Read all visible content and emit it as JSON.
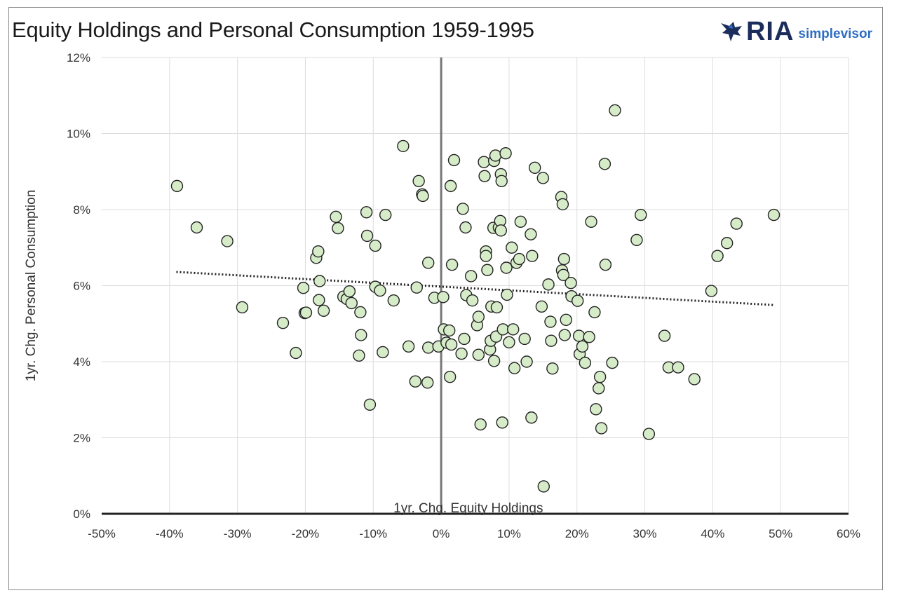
{
  "chart_data": {
    "type": "scatter",
    "title": "Equity Holdings and Personal Consumption 1959-1995",
    "xlabel": "1yr. Chg. Equity Holdings",
    "ylabel": "1yr. Chg. Personal Consumption",
    "xlim": [
      -0.5,
      0.6
    ],
    "ylim": [
      0,
      0.12
    ],
    "x_ticks": [
      -0.5,
      -0.4,
      -0.3,
      -0.2,
      -0.1,
      0,
      0.1,
      0.2,
      0.3,
      0.4,
      0.5,
      0.6
    ],
    "x_tick_labels": [
      "-50%",
      "-40%",
      "-30%",
      "-20%",
      "-10%",
      "0%",
      "10%",
      "20%",
      "30%",
      "40%",
      "50%",
      "60%"
    ],
    "y_ticks": [
      0,
      0.02,
      0.04,
      0.06,
      0.08,
      0.1,
      0.12
    ],
    "y_tick_labels": [
      "0%",
      "2%",
      "4%",
      "6%",
      "8%",
      "10%",
      "12%"
    ],
    "grid": true,
    "marker_color": "#d6ecc9",
    "marker_edge_color": "#222222",
    "trendline": {
      "style": "dotted",
      "x": [
        -0.39,
        0.49
      ],
      "y": [
        0.0636,
        0.0549
      ]
    },
    "points": [
      [
        -0.389,
        0.0862
      ],
      [
        -0.36,
        0.0753
      ],
      [
        -0.315,
        0.0717
      ],
      [
        -0.293,
        0.0543
      ],
      [
        -0.233,
        0.0502
      ],
      [
        -0.214,
        0.0423
      ],
      [
        -0.203,
        0.0594
      ],
      [
        -0.201,
        0.0528
      ],
      [
        -0.199,
        0.0529
      ],
      [
        -0.184,
        0.0673
      ],
      [
        -0.181,
        0.069
      ],
      [
        -0.18,
        0.0562
      ],
      [
        -0.179,
        0.0612
      ],
      [
        -0.173,
        0.0534
      ],
      [
        -0.155,
        0.0781
      ],
      [
        -0.152,
        0.0751
      ],
      [
        -0.144,
        0.0571
      ],
      [
        -0.139,
        0.0565
      ],
      [
        -0.135,
        0.0585
      ],
      [
        -0.132,
        0.0554
      ],
      [
        -0.119,
        0.053
      ],
      [
        -0.118,
        0.047
      ],
      [
        -0.121,
        0.0416
      ],
      [
        -0.11,
        0.0793
      ],
      [
        -0.109,
        0.0731
      ],
      [
        -0.105,
        0.0287
      ],
      [
        -0.097,
        0.0705
      ],
      [
        -0.097,
        0.0597
      ],
      [
        -0.09,
        0.0587
      ],
      [
        -0.086,
        0.0425
      ],
      [
        -0.082,
        0.0786
      ],
      [
        -0.07,
        0.0561
      ],
      [
        -0.056,
        0.0967
      ],
      [
        -0.048,
        0.044
      ],
      [
        -0.038,
        0.0348
      ],
      [
        -0.036,
        0.0595
      ],
      [
        -0.033,
        0.0875
      ],
      [
        -0.028,
        0.084
      ],
      [
        -0.027,
        0.0836
      ],
      [
        -0.02,
        0.0345
      ],
      [
        -0.019,
        0.066
      ],
      [
        -0.019,
        0.0437
      ],
      [
        -0.01,
        0.0568
      ],
      [
        -0.004,
        0.044
      ],
      [
        0.003,
        0.057
      ],
      [
        0.004,
        0.0485
      ],
      [
        0.008,
        0.045
      ],
      [
        0.012,
        0.0482
      ],
      [
        0.013,
        0.036
      ],
      [
        0.014,
        0.0862
      ],
      [
        0.015,
        0.0445
      ],
      [
        0.016,
        0.0655
      ],
      [
        0.019,
        0.093
      ],
      [
        0.03,
        0.0421
      ],
      [
        0.032,
        0.0802
      ],
      [
        0.034,
        0.046
      ],
      [
        0.036,
        0.0753
      ],
      [
        0.037,
        0.0575
      ],
      [
        0.044,
        0.0625
      ],
      [
        0.046,
        0.0561
      ],
      [
        0.053,
        0.0496
      ],
      [
        0.055,
        0.0518
      ],
      [
        0.055,
        0.0418
      ],
      [
        0.058,
        0.0235
      ],
      [
        0.063,
        0.0925
      ],
      [
        0.064,
        0.0888
      ],
      [
        0.066,
        0.069
      ],
      [
        0.066,
        0.0678
      ],
      [
        0.068,
        0.0641
      ],
      [
        0.072,
        0.0432
      ],
      [
        0.073,
        0.0455
      ],
      [
        0.074,
        0.0545
      ],
      [
        0.077,
        0.0752
      ],
      [
        0.078,
        0.0928
      ],
      [
        0.078,
        0.0402
      ],
      [
        0.08,
        0.0942
      ],
      [
        0.081,
        0.0466
      ],
      [
        0.082,
        0.0543
      ],
      [
        0.085,
        0.0753
      ],
      [
        0.087,
        0.077
      ],
      [
        0.088,
        0.0745
      ],
      [
        0.088,
        0.0893
      ],
      [
        0.089,
        0.0875
      ],
      [
        0.091,
        0.0485
      ],
      [
        0.09,
        0.024
      ],
      [
        0.095,
        0.0948
      ],
      [
        0.096,
        0.0647
      ],
      [
        0.097,
        0.0576
      ],
      [
        0.1,
        0.0451
      ],
      [
        0.104,
        0.07
      ],
      [
        0.106,
        0.0485
      ],
      [
        0.108,
        0.0383
      ],
      [
        0.111,
        0.066
      ],
      [
        0.115,
        0.067
      ],
      [
        0.117,
        0.0768
      ],
      [
        0.123,
        0.046
      ],
      [
        0.126,
        0.04
      ],
      [
        0.132,
        0.0735
      ],
      [
        0.133,
        0.0253
      ],
      [
        0.134,
        0.0678
      ],
      [
        0.138,
        0.091
      ],
      [
        0.148,
        0.0545
      ],
      [
        0.15,
        0.0883
      ],
      [
        0.151,
        0.0072
      ],
      [
        0.158,
        0.0603
      ],
      [
        0.161,
        0.0505
      ],
      [
        0.162,
        0.0455
      ],
      [
        0.164,
        0.0382
      ],
      [
        0.177,
        0.0833
      ],
      [
        0.178,
        0.064
      ],
      [
        0.179,
        0.0814
      ],
      [
        0.18,
        0.0628
      ],
      [
        0.181,
        0.067
      ],
      [
        0.182,
        0.047
      ],
      [
        0.184,
        0.051
      ],
      [
        0.191,
        0.0607
      ],
      [
        0.192,
        0.0572
      ],
      [
        0.201,
        0.056
      ],
      [
        0.203,
        0.0468
      ],
      [
        0.204,
        0.042
      ],
      [
        0.208,
        0.044
      ],
      [
        0.212,
        0.0397
      ],
      [
        0.218,
        0.0465
      ],
      [
        0.221,
        0.0768
      ],
      [
        0.226,
        0.053
      ],
      [
        0.228,
        0.0275
      ],
      [
        0.232,
        0.033
      ],
      [
        0.234,
        0.036
      ],
      [
        0.236,
        0.0225
      ],
      [
        0.241,
        0.092
      ],
      [
        0.242,
        0.0655
      ],
      [
        0.252,
        0.0397
      ],
      [
        0.256,
        0.1061
      ],
      [
        0.288,
        0.072
      ],
      [
        0.294,
        0.0786
      ],
      [
        0.306,
        0.021
      ],
      [
        0.329,
        0.0468
      ],
      [
        0.335,
        0.0385
      ],
      [
        0.349,
        0.0385
      ],
      [
        0.373,
        0.0354
      ],
      [
        0.398,
        0.0586
      ],
      [
        0.407,
        0.0678
      ],
      [
        0.421,
        0.0712
      ],
      [
        0.435,
        0.0763
      ],
      [
        0.49,
        0.0786
      ]
    ]
  },
  "brand": {
    "name": "RIA",
    "sub": "simplevisor",
    "colors": {
      "dark": "#1c2d5c",
      "accent": "#2f6fc2"
    }
  }
}
